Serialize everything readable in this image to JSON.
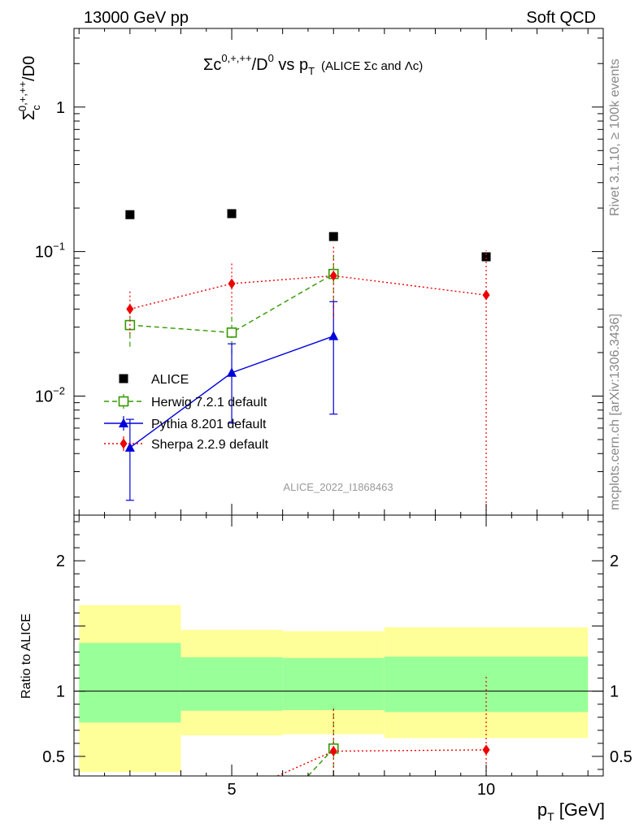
{
  "header": {
    "left": "13000 GeV pp",
    "right": "Soft QCD"
  },
  "side_labels": {
    "rivet": "Rivet 3.1.10, ≥ 100k events",
    "mcplots": "mcplots.cern.ch [arXiv:1306.3436]"
  },
  "main_title": {
    "sigma": "Σc",
    "sigma_sup": "0,+,++",
    "slash_d": "/D",
    "d_sup": "0",
    "vs": " vs p",
    "pt_sub": "T",
    "small": "(ALICE Σc and Λc)"
  },
  "ylabel_top": {
    "sigma": "Σ",
    "sub": "c",
    "sup": "0,+,++",
    "tail": "/D0"
  },
  "ylabel_bottom": "Ratio to ALICE",
  "xlabel": {
    "p": "p",
    "sub": "T",
    "unit": " [GeV]"
  },
  "analysis_tag": "ALICE_2022_I1868463",
  "chart_data": [
    {
      "type": "scatter",
      "panel": "main",
      "yscale": "log",
      "xlim": [
        1.9,
        12.3
      ],
      "ylim": [
        0.0015,
        3.5
      ],
      "yticks": [
        {
          "value": 1,
          "label": "1"
        },
        {
          "value": 0.1,
          "label": "10",
          "sup": "−1"
        },
        {
          "value": 0.01,
          "label": "10",
          "sup": "−2"
        }
      ],
      "series": [
        {
          "name": "ALICE",
          "color": "#000000",
          "marker": "square-filled",
          "line": "none",
          "x": [
            3,
            5,
            7,
            10
          ],
          "y": [
            0.18,
            0.183,
            0.127,
            0.092
          ]
        },
        {
          "name": "Herwig 7.2.1 default",
          "color": "#339900",
          "marker": "square-open",
          "line": "dashed",
          "x": [
            3,
            5,
            7
          ],
          "y": [
            0.031,
            0.0275,
            0.07
          ],
          "yerr_low": [
            0.022,
            0.0195,
            0.035
          ],
          "yerr_high": [
            0.04,
            0.037,
            0.1
          ]
        },
        {
          "name": "Pythia 8.201 default",
          "color": "#0000dd",
          "marker": "triangle-filled",
          "line": "solid",
          "x": [
            3,
            5,
            7
          ],
          "y": [
            0.0044,
            0.0145,
            0.026
          ],
          "yerr_low": [
            0.0019,
            0.0065,
            0.0075
          ],
          "yerr_high": [
            0.0069,
            0.023,
            0.045
          ]
        },
        {
          "name": "Sherpa 2.2.9 default",
          "color": "#ee0000",
          "marker": "diamond-filled",
          "line": "dotted",
          "x": [
            3,
            5,
            7,
            10
          ],
          "y": [
            0.04,
            0.06,
            0.068,
            0.05
          ],
          "yerr_low": [
            0.027,
            0.037,
            0.035,
            0.0015
          ],
          "yerr_high": [
            0.053,
            0.083,
            0.11,
            0.102
          ]
        }
      ]
    },
    {
      "type": "scatter",
      "panel": "ratio",
      "xlim": [
        1.9,
        12.3
      ],
      "ylim": [
        0.35,
        2.35
      ],
      "yticks": [
        {
          "value": 0.5,
          "label": "0.5"
        },
        {
          "value": 1,
          "label": "1"
        },
        {
          "value": 2,
          "label": "2"
        }
      ],
      "xticks": [
        {
          "value": 5,
          "label": "5"
        },
        {
          "value": 10,
          "label": "10"
        }
      ],
      "bands": [
        {
          "x0": 2,
          "x1": 4,
          "green": [
            0.76,
            1.37
          ],
          "yellow": [
            0.38,
            1.66
          ]
        },
        {
          "x0": 4,
          "x1": 6,
          "green": [
            0.85,
            1.26
          ],
          "yellow": [
            0.66,
            1.47
          ]
        },
        {
          "x0": 6,
          "x1": 8,
          "green": [
            0.855,
            1.255
          ],
          "yellow": [
            0.67,
            1.46
          ]
        },
        {
          "x0": 8,
          "x1": 12,
          "green": [
            0.84,
            1.265
          ],
          "yellow": [
            0.64,
            1.49
          ]
        }
      ],
      "series": [
        {
          "name": "Herwig 7.2.1 default",
          "color": "#339900",
          "x": [
            6.5,
            7
          ],
          "y": [
            0.35,
            0.56
          ],
          "yerr_low": [
            null,
            0.35
          ],
          "yerr_high": [
            null,
            0.87
          ]
        },
        {
          "name": "Sherpa 2.2.9 default",
          "color": "#ee0000",
          "x": [
            5.9,
            7,
            10
          ],
          "y": [
            0.35,
            0.54,
            0.55
          ],
          "yerr_low": [
            null,
            0.35,
            0.35
          ],
          "yerr_high": [
            null,
            0.88,
            1.11
          ]
        }
      ]
    }
  ],
  "legend_position": "lower-left"
}
